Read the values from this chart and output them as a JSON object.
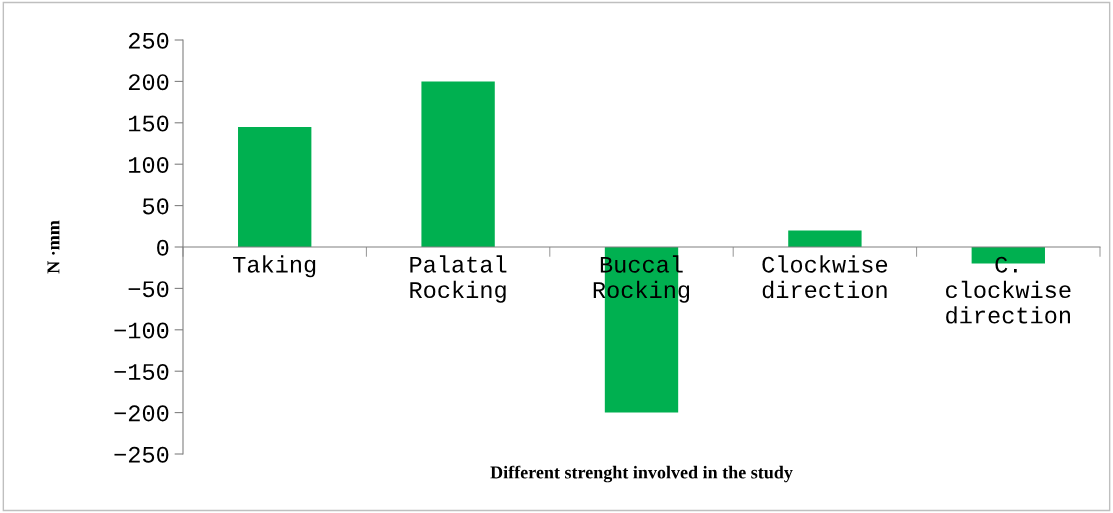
{
  "chart_data": {
    "type": "bar",
    "xlabel": "Different strenght involved in the study",
    "ylabel": "N ·mm",
    "categories": [
      "Taking",
      "Palatal\nRocking",
      "Buccal\nRocking",
      "Clockwise\ndirection",
      "C.\nclockwise\ndirection"
    ],
    "values": [
      145,
      200,
      -200,
      20,
      -20
    ],
    "color": "#00b050",
    "ylim": [
      -250,
      250
    ],
    "yticks": [
      -250,
      -200,
      -150,
      -100,
      -50,
      0,
      50,
      100,
      150,
      200,
      250
    ],
    "grid": false,
    "legend": false
  }
}
